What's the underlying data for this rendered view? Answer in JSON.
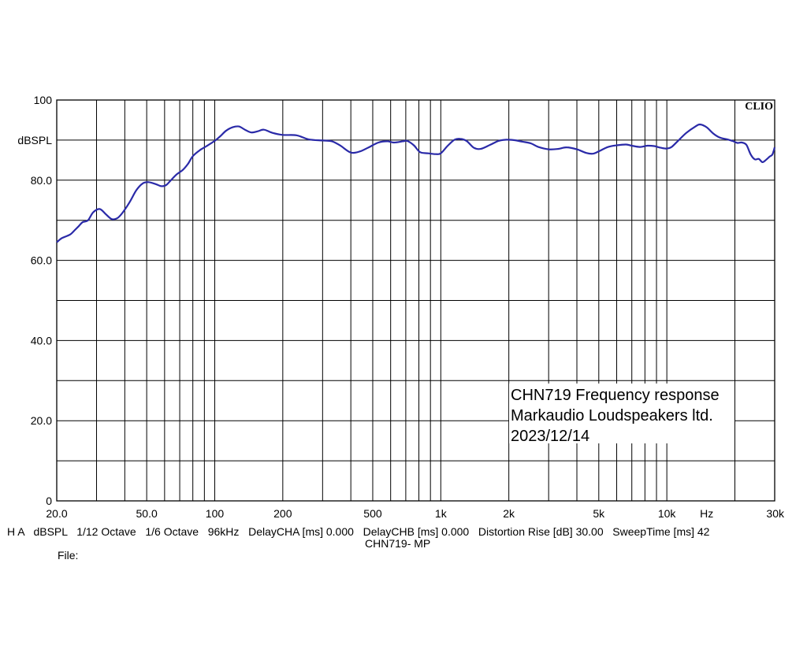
{
  "chart_data": {
    "type": "line",
    "x_scale": "log",
    "xlim": [
      20,
      30000
    ],
    "ylim": [
      0,
      100
    ],
    "grid": true,
    "brand": "CLIO",
    "y_unit": "dBSPL",
    "y_tick_labels": [
      {
        "value": 0,
        "label": "0"
      },
      {
        "value": 20,
        "label": "20.0"
      },
      {
        "value": 40,
        "label": "40.0"
      },
      {
        "value": 60,
        "label": "60.0"
      },
      {
        "value": 80,
        "label": "80.0"
      },
      {
        "value": 100,
        "label": "100"
      }
    ],
    "y_unit_value": 90,
    "y_gridlines": [
      10,
      20,
      30,
      40,
      50,
      60,
      70,
      80,
      90
    ],
    "x_gridlines": [
      30,
      40,
      50,
      60,
      70,
      80,
      90,
      100,
      200,
      300,
      400,
      500,
      600,
      700,
      800,
      900,
      1000,
      2000,
      3000,
      4000,
      5000,
      6000,
      7000,
      8000,
      9000,
      10000,
      20000
    ],
    "x_tick_labels": [
      {
        "value": 20,
        "label": "20.0"
      },
      {
        "value": 50,
        "label": "50.0"
      },
      {
        "value": 100,
        "label": "100"
      },
      {
        "value": 200,
        "label": "200"
      },
      {
        "value": 500,
        "label": "500"
      },
      {
        "value": 1000,
        "label": "1k"
      },
      {
        "value": 2000,
        "label": "2k"
      },
      {
        "value": 5000,
        "label": "5k"
      },
      {
        "value": 10000,
        "label": "10k"
      },
      {
        "value": 30000,
        "label": "30k"
      }
    ],
    "x_unit": "Hz",
    "x_unit_value": 15000,
    "series": [
      {
        "color": "#2a2aa8",
        "points": [
          [
            20,
            64.5
          ],
          [
            21,
            65.5
          ],
          [
            22,
            66
          ],
          [
            23,
            66.5
          ],
          [
            24,
            67.5
          ],
          [
            25,
            68.5
          ],
          [
            26,
            69.5
          ],
          [
            27.5,
            70
          ],
          [
            29,
            72
          ],
          [
            31,
            72.8
          ],
          [
            33,
            71.5
          ],
          [
            35,
            70.3
          ],
          [
            37,
            70.5
          ],
          [
            39,
            71.8
          ],
          [
            42,
            74.5
          ],
          [
            45,
            77.5
          ],
          [
            48,
            79.2
          ],
          [
            51,
            79.5
          ],
          [
            55,
            79
          ],
          [
            58,
            78.5
          ],
          [
            61,
            78.8
          ],
          [
            64,
            80
          ],
          [
            68,
            81.5
          ],
          [
            72,
            82.5
          ],
          [
            76,
            84
          ],
          [
            80,
            86
          ],
          [
            86,
            87.5
          ],
          [
            92,
            88.5
          ],
          [
            100,
            89.8
          ],
          [
            106,
            91
          ],
          [
            112,
            92.3
          ],
          [
            120,
            93.2
          ],
          [
            128,
            93.4
          ],
          [
            136,
            92.6
          ],
          [
            145,
            91.9
          ],
          [
            155,
            92.2
          ],
          [
            165,
            92.6
          ],
          [
            180,
            91.8
          ],
          [
            200,
            91.3
          ],
          [
            230,
            91.2
          ],
          [
            260,
            90.2
          ],
          [
            300,
            89.9
          ],
          [
            330,
            89.7
          ],
          [
            360,
            88.6
          ],
          [
            400,
            86.9
          ],
          [
            440,
            87.2
          ],
          [
            480,
            88.2
          ],
          [
            530,
            89.4
          ],
          [
            580,
            89.7
          ],
          [
            620,
            89.4
          ],
          [
            680,
            89.7
          ],
          [
            710,
            89.8
          ],
          [
            760,
            88.7
          ],
          [
            810,
            87
          ],
          [
            880,
            86.7
          ],
          [
            950,
            86.5
          ],
          [
            1000,
            86.7
          ],
          [
            1070,
            88.5
          ],
          [
            1150,
            90.1
          ],
          [
            1220,
            90.3
          ],
          [
            1300,
            89.8
          ],
          [
            1400,
            88.1
          ],
          [
            1500,
            87.8
          ],
          [
            1650,
            88.8
          ],
          [
            1800,
            89.8
          ],
          [
            1950,
            90.1
          ],
          [
            2100,
            90
          ],
          [
            2300,
            89.6
          ],
          [
            2500,
            89.2
          ],
          [
            2700,
            88.3
          ],
          [
            3000,
            87.7
          ],
          [
            3300,
            87.8
          ],
          [
            3600,
            88.2
          ],
          [
            4000,
            87.7
          ],
          [
            4400,
            86.8
          ],
          [
            4700,
            86.6
          ],
          [
            5000,
            87.2
          ],
          [
            5500,
            88.3
          ],
          [
            6000,
            88.7
          ],
          [
            6600,
            88.9
          ],
          [
            7000,
            88.6
          ],
          [
            7600,
            88.3
          ],
          [
            8200,
            88.6
          ],
          [
            8800,
            88.5
          ],
          [
            9400,
            88.1
          ],
          [
            10000,
            87.9
          ],
          [
            10500,
            88.3
          ],
          [
            11200,
            89.8
          ],
          [
            12200,
            91.8
          ],
          [
            13300,
            93.3
          ],
          [
            14000,
            93.9
          ],
          [
            15000,
            93.2
          ],
          [
            16000,
            91.7
          ],
          [
            17200,
            90.6
          ],
          [
            18500,
            90.2
          ],
          [
            19500,
            89.8
          ],
          [
            20500,
            89.3
          ],
          [
            21500,
            89.4
          ],
          [
            22500,
            88.8
          ],
          [
            23500,
            86.4
          ],
          [
            24500,
            85.2
          ],
          [
            25500,
            85.3
          ],
          [
            26500,
            84.5
          ],
          [
            27500,
            85.1
          ],
          [
            28500,
            85.9
          ],
          [
            29300,
            86.4
          ],
          [
            30000,
            88.2
          ]
        ]
      }
    ],
    "annotation": [
      "CHN719  Frequency response",
      "Markaudio Loudspeakers ltd.",
      "2023/12/14"
    ],
    "footer_settings": "H A   dBSPL   1/12 Octave   1/6 Octave   96kHz   DelayCHA [ms] 0.000   DelayCHB [ms] 0.000   Distortion Rise [dB] 30.00   SweepTime [ms] 42",
    "footer_name": "CHN719- MP",
    "footer_file": "File:"
  }
}
